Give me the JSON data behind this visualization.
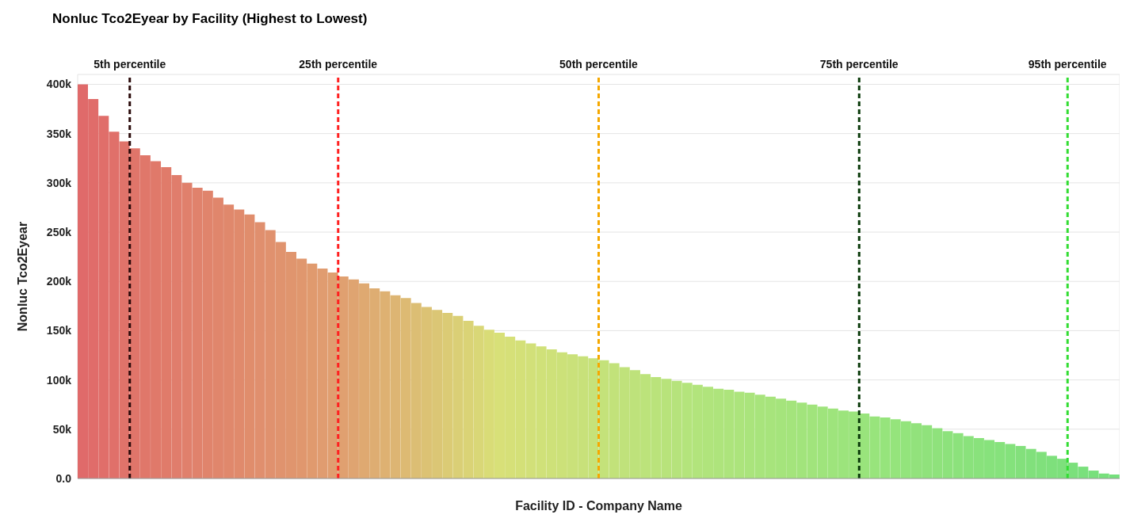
{
  "chart_data": {
    "type": "bar",
    "title": "Nonluc Tco2Eyear by Facility (Highest to Lowest)",
    "xlabel": "Facility ID - Company Name",
    "ylabel": "Nonluc Tco2Eyear",
    "x": [
      1,
      2,
      3,
      4,
      5,
      6,
      7,
      8,
      9,
      10,
      11,
      12,
      13,
      14,
      15,
      16,
      17,
      18,
      19,
      20,
      21,
      22,
      23,
      24,
      25,
      26,
      27,
      28,
      29,
      30,
      31,
      32,
      33,
      34,
      35,
      36,
      37,
      38,
      39,
      40,
      41,
      42,
      43,
      44,
      45,
      46,
      47,
      48,
      49,
      50,
      51,
      52,
      53,
      54,
      55,
      56,
      57,
      58,
      59,
      60,
      61,
      62,
      63,
      64,
      65,
      66,
      67,
      68,
      69,
      70,
      71,
      72,
      73,
      74,
      75,
      76,
      77,
      78,
      79,
      80,
      81,
      82,
      83,
      84,
      85,
      86,
      87,
      88,
      89,
      90,
      91,
      92,
      93,
      94,
      95,
      96,
      97,
      98,
      99,
      100
    ],
    "xlim": [
      0.5,
      100.5
    ],
    "values": [
      400000,
      385000,
      368000,
      352000,
      342000,
      335000,
      328000,
      322000,
      316000,
      308000,
      300000,
      295000,
      292000,
      285000,
      278000,
      273000,
      268000,
      260000,
      252000,
      240000,
      230000,
      223000,
      218000,
      213000,
      209000,
      205000,
      202000,
      198000,
      193000,
      190000,
      186000,
      183000,
      178000,
      174000,
      171000,
      168000,
      165000,
      160000,
      155000,
      151000,
      148000,
      144000,
      140000,
      137000,
      134000,
      131000,
      128000,
      126000,
      124000,
      122000,
      120000,
      117000,
      113000,
      110000,
      106000,
      103000,
      101000,
      99000,
      97000,
      95000,
      93000,
      91000,
      90000,
      88000,
      87000,
      85000,
      83000,
      81000,
      79000,
      77000,
      75000,
      73000,
      71000,
      69000,
      68000,
      66000,
      63000,
      62000,
      60000,
      58000,
      56000,
      54000,
      51000,
      48000,
      46000,
      43000,
      41000,
      39000,
      37000,
      35000,
      33000,
      30000,
      27000,
      23000,
      20000,
      16000,
      12000,
      8000,
      5000,
      4000
    ],
    "colors": [
      "#e06a6a",
      "#e06c6a",
      "#e06e6a",
      "#e0706a",
      "#e0736a",
      "#e0756a",
      "#e0776a",
      "#e0796a",
      "#e07b6a",
      "#e07d6c",
      "#e0806c",
      "#e0826c",
      "#e0846c",
      "#e0866c",
      "#e0886c",
      "#e08a6c",
      "#e08d6c",
      "#e08f6e",
      "#e0916e",
      "#e0936e",
      "#e0956e",
      "#e0976e",
      "#e09a6e",
      "#e09c70",
      "#e09e70",
      "#e0a070",
      "#dfa471",
      "#dfa971",
      "#dead72",
      "#deb172",
      "#ddb573",
      "#ddba73",
      "#dcbe74",
      "#dcc274",
      "#dbc675",
      "#dbcb75",
      "#dacf76",
      "#dad376",
      "#d9d777",
      "#d9dc77",
      "#d8e078",
      "#d6e078",
      "#d4e078",
      "#d2e079",
      "#d0e179",
      "#cee179",
      "#cce179",
      "#cae17a",
      "#c8e17a",
      "#c6e27a",
      "#c4e27a",
      "#c2e27a",
      "#c0e27b",
      "#bee27b",
      "#bce37b",
      "#bae37b",
      "#b8e37b",
      "#b6e37c",
      "#b4e47c",
      "#b2e47c",
      "#b0e47c",
      "#aee47c",
      "#ade47c",
      "#ace47c",
      "#aae47c",
      "#a8e47c",
      "#a7e47c",
      "#a5e47c",
      "#a4e47c",
      "#a2e47c",
      "#a1e47c",
      "#9fe47c",
      "#9ee47c",
      "#9ce47c",
      "#9be47c",
      "#99e47c",
      "#98e47c",
      "#96e47c",
      "#95e47c",
      "#93e47c",
      "#92e27c",
      "#90e27c",
      "#8fe27c",
      "#8de27c",
      "#8ce27c",
      "#8ae27c",
      "#89e27c",
      "#87e27c",
      "#86e27c",
      "#84e27c",
      "#83e07c",
      "#81e07c",
      "#80e07c",
      "#7ee07c",
      "#7de07c",
      "#7be07c",
      "#7ae07c",
      "#78e07c",
      "#77e07c",
      "#75e07c"
    ],
    "ylim": [
      0,
      410000
    ],
    "yticks": [
      {
        "value": 0,
        "label": "0.0"
      },
      {
        "value": 50000,
        "label": "50k"
      },
      {
        "value": 100000,
        "label": "100k"
      },
      {
        "value": 150000,
        "label": "150k"
      },
      {
        "value": 200000,
        "label": "200k"
      },
      {
        "value": 250000,
        "label": "250k"
      },
      {
        "value": 300000,
        "label": "300k"
      },
      {
        "value": 350000,
        "label": "350k"
      },
      {
        "value": 400000,
        "label": "400k"
      }
    ],
    "ref_lines": [
      {
        "axis": "x",
        "value": 5.5,
        "label": "5th percentile",
        "color": "#2a0a0a",
        "line_style": "dashed"
      },
      {
        "axis": "x",
        "value": 25.5,
        "label": "25th percentile",
        "color": "#ff2020",
        "line_style": "dashed"
      },
      {
        "axis": "x",
        "value": 50.5,
        "label": "50th percentile",
        "color": "#f5a800",
        "line_style": "dashed"
      },
      {
        "axis": "x",
        "value": 75.5,
        "label": "75th percentile",
        "color": "#0a3a0a",
        "line_style": "dashed"
      },
      {
        "axis": "x",
        "value": 95.5,
        "label": "95th percentile",
        "color": "#33dd33",
        "line_style": "dashed"
      }
    ],
    "grid": true,
    "tick_labels": "y"
  }
}
